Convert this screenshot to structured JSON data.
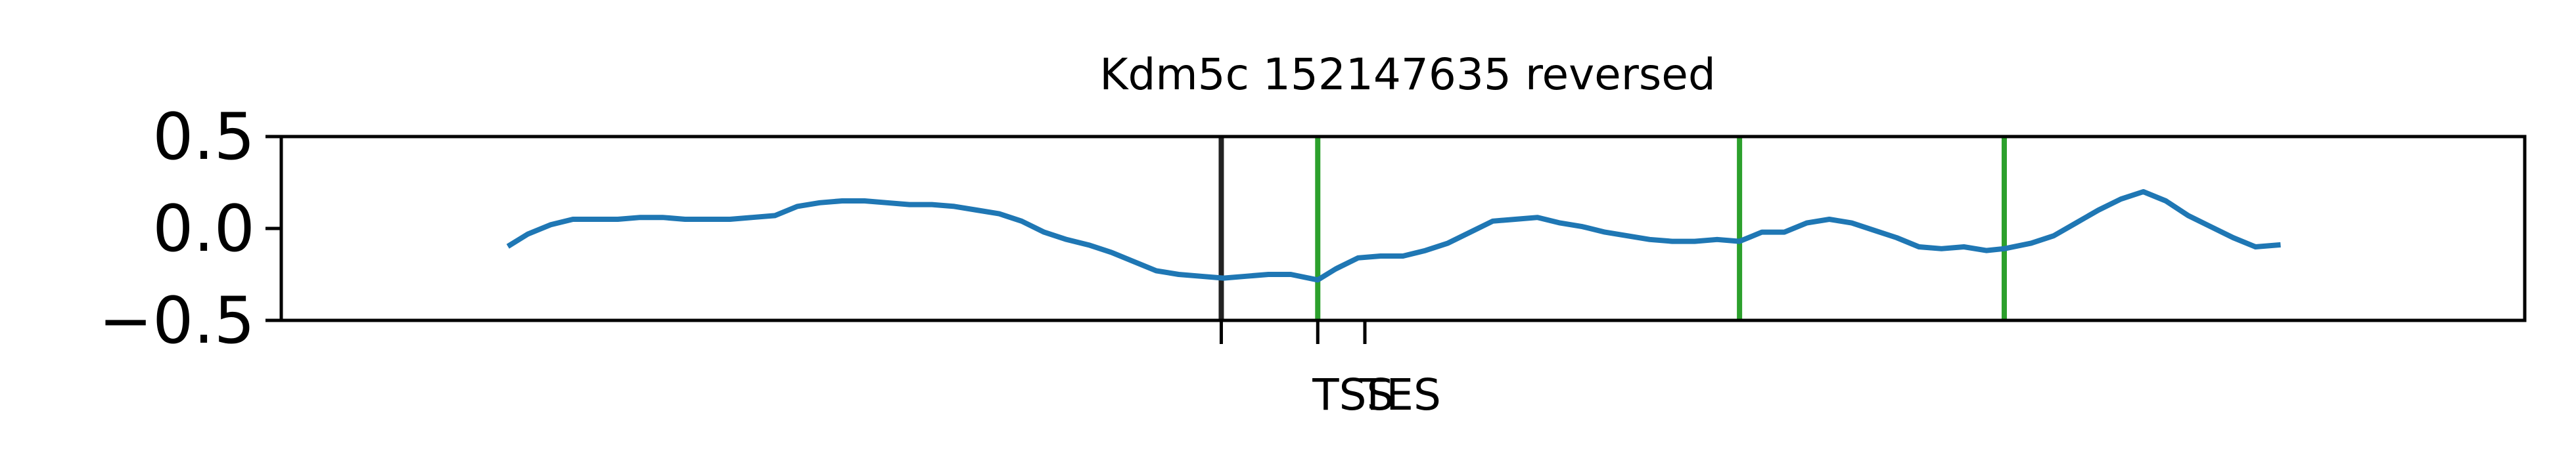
{
  "chart_data": {
    "type": "line",
    "title": "Kdm5c 152147635 reversed",
    "xlabel": "",
    "ylabel": "",
    "xlim": [
      0,
      100
    ],
    "ylim": [
      -0.5,
      0.5
    ],
    "yticks": [
      "0.5",
      "0.0",
      "−0.5"
    ],
    "ytick_values": [
      0.5,
      0.0,
      -0.5
    ],
    "xticks": [
      {
        "label": "",
        "x": 41.9
      },
      {
        "label": "TSS",
        "x": 46.2
      },
      {
        "label": "TES",
        "x": 48.3
      }
    ],
    "grid": false,
    "colors": {
      "series": "#1f77b4",
      "marker_line": "#2ca02c",
      "neutral_line": "#222222",
      "axes": "#000000"
    },
    "vertical_lines": [
      {
        "x": 41.9,
        "color": "#222222"
      },
      {
        "x": 46.2,
        "color": "#2ca02c"
      },
      {
        "x": 65.0,
        "color": "#2ca02c"
      },
      {
        "x": 76.8,
        "color": "#2ca02c"
      }
    ],
    "series": [
      {
        "x": [
          10.2,
          11.0,
          12.0,
          13.0,
          14.0,
          15.0,
          16.0,
          17.0,
          18.0,
          19.0,
          20.0,
          21.0,
          22.0,
          23.0,
          24.0,
          25.0,
          26.0,
          27.0,
          28.0,
          29.0,
          30.0,
          31.0,
          32.0,
          33.0,
          34.0,
          35.0,
          36.0,
          37.0,
          38.0,
          39.0,
          40.0,
          41.0,
          42.0,
          43.0,
          44.0,
          45.0,
          46.2,
          47.0,
          48.0,
          49.0,
          50.0,
          51.0,
          52.0,
          53.0,
          54.0,
          55.0,
          56.0,
          57.0,
          58.0,
          59.0,
          60.0,
          61.0,
          62.0,
          63.0,
          64.0,
          65.0,
          66.0,
          67.0,
          68.0,
          69.0,
          70.0,
          71.0,
          72.0,
          73.0,
          74.0,
          75.0,
          76.0,
          76.8,
          78.0,
          79.0,
          80.0,
          81.0,
          82.0,
          83.0,
          84.0,
          85.0,
          86.0,
          87.0,
          88.0,
          89.0
        ],
        "y": [
          -0.09,
          -0.03,
          0.02,
          0.05,
          0.05,
          0.05,
          0.06,
          0.06,
          0.05,
          0.05,
          0.05,
          0.06,
          0.07,
          0.12,
          0.14,
          0.15,
          0.15,
          0.14,
          0.13,
          0.13,
          0.12,
          0.1,
          0.08,
          0.04,
          -0.02,
          -0.06,
          -0.09,
          -0.13,
          -0.18,
          -0.23,
          -0.25,
          -0.26,
          -0.27,
          -0.26,
          -0.25,
          -0.25,
          -0.28,
          -0.22,
          -0.16,
          -0.15,
          -0.15,
          -0.12,
          -0.08,
          -0.02,
          0.04,
          0.05,
          0.06,
          0.03,
          0.01,
          -0.02,
          -0.04,
          -0.06,
          -0.07,
          -0.07,
          -0.06,
          -0.07,
          -0.02,
          -0.02,
          0.03,
          0.05,
          0.03,
          -0.01,
          -0.05,
          -0.1,
          -0.11,
          -0.1,
          -0.12,
          -0.11,
          -0.08,
          -0.04,
          0.03,
          0.1,
          0.16,
          0.2,
          0.15,
          0.07,
          0.01,
          -0.05,
          -0.1,
          -0.09
        ]
      }
    ]
  }
}
